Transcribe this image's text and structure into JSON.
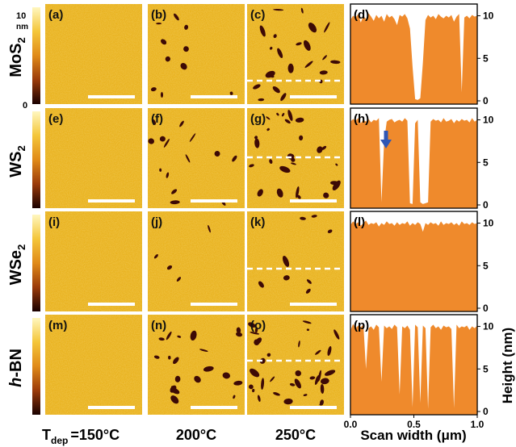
{
  "colorbar": {
    "top": "10",
    "unit": "nm",
    "bottom": "0"
  },
  "rows": [
    {
      "material": "MoS",
      "sub": "2",
      "panels": [
        "(a)",
        "(b)",
        "(c)"
      ],
      "profile_label": "(d)",
      "profile_values": [
        9.5,
        10.0,
        9.8,
        10.2,
        9.2,
        10.0,
        9.6,
        10.3,
        9.9,
        9.4,
        10.1,
        9.7,
        10.0,
        9.3,
        10.2,
        9.8,
        10.0,
        9.6,
        8.9,
        10.1,
        9.9,
        10.2,
        9.7,
        8.5,
        4.0,
        0.2,
        0.1,
        0.3,
        4.5,
        9.5,
        10.1,
        9.8,
        10.0,
        9.6,
        10.2,
        9.9,
        9.7,
        10.0,
        9.8,
        10.1,
        9.3,
        9.9,
        10.2,
        1.0,
        9.8,
        10.0,
        9.7,
        10.1,
        9.9,
        10.0
      ]
    },
    {
      "material": "WS",
      "sub": "2",
      "panels": [
        "(e)",
        "(f)",
        "(g)"
      ],
      "profile_label": "(h)",
      "profile_values": [
        9.8,
        10.1,
        9.9,
        10.2,
        9.6,
        10.0,
        9.8,
        10.1,
        9.7,
        10.0,
        9.9,
        10.2,
        0.3,
        7.5,
        9.8,
        10.0,
        10.1,
        9.7,
        9.9,
        10.0,
        9.8,
        10.2,
        9.9,
        0.2,
        0.1,
        9.6,
        10.0,
        0.3,
        0.1,
        0.2,
        0.3,
        9.8,
        10.1,
        9.9,
        10.0,
        9.7,
        10.2,
        9.8,
        9.9,
        10.1,
        9.6,
        10.0,
        9.8,
        10.1,
        9.9,
        10.0,
        9.7,
        10.2,
        9.8,
        10.0
      ]
    },
    {
      "material": "WSe",
      "sub": "2",
      "panels": [
        "(i)",
        "(j)",
        "(k)"
      ],
      "profile_label": "(l)",
      "profile_values": [
        9.8,
        10.2,
        9.9,
        10.1,
        9.7,
        10.0,
        10.3,
        9.8,
        10.0,
        9.9,
        10.1,
        9.6,
        10.0,
        9.8,
        10.2,
        9.9,
        10.0,
        9.7,
        10.1,
        9.8,
        10.0,
        9.9,
        10.2,
        9.7,
        10.0,
        9.8,
        10.1,
        9.9,
        9.0,
        10.0,
        9.8,
        10.1,
        9.9,
        10.0,
        9.7,
        10.2,
        9.8,
        10.0,
        9.9,
        10.1,
        9.8,
        10.0,
        9.7,
        10.2,
        9.9,
        10.0,
        9.8,
        10.1,
        9.9,
        10.0
      ]
    },
    {
      "material": "h-BN",
      "sub": "",
      "panels": [
        "(m)",
        "(n)",
        "(o)"
      ],
      "profile_label": "(p)",
      "profile_values": [
        9.5,
        10.3,
        9.8,
        10.1,
        9.9,
        10.2,
        5.0,
        9.8,
        10.0,
        9.6,
        10.2,
        9.9,
        3.5,
        10.1,
        9.8,
        10.0,
        9.7,
        10.2,
        9.9,
        2.0,
        10.0,
        9.8,
        10.1,
        9.6,
        0.5,
        10.2,
        9.9,
        1.0,
        10.1,
        9.8,
        0.3,
        9.9,
        10.2,
        9.8,
        10.0,
        9.6,
        10.1,
        9.9,
        10.0,
        9.7,
        0.4,
        10.2,
        9.8,
        10.0,
        9.9,
        10.1,
        9.6,
        10.0,
        9.8,
        10.1
      ]
    }
  ],
  "bottom_labels": {
    "t_main": "T",
    "t_sub": "dep",
    "col1": "=150°C",
    "col2": "200°C",
    "col3": "250°C",
    "xlabel": "Scan width (μm)"
  },
  "ylabel": "Height (nm)",
  "chart_data": {
    "type": "area",
    "xlim": [
      0.0,
      1.0
    ],
    "x_ticks": [
      "0.0",
      "0.5",
      "1.0"
    ],
    "ylim": [
      0,
      11
    ],
    "y_ticks": [
      "0",
      "5",
      "10"
    ],
    "color": "#ef8a2c"
  },
  "colors": {
    "afm_base": "#e9b21e",
    "afm_hole": "#3d0a06",
    "profile_fill": "#ef8a2c",
    "arrow": "#2f57b5",
    "dashed_line": "#ffffff"
  }
}
